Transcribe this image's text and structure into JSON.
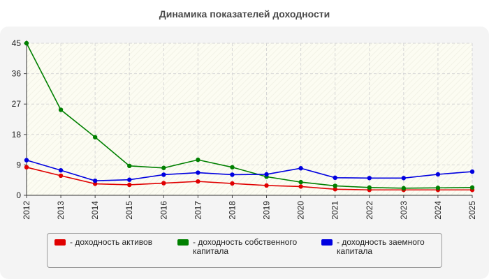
{
  "title": "Динамика показателей доходности",
  "chart_data": {
    "type": "line",
    "title": "Динамика показателей доходности",
    "xlabel": "",
    "ylabel": "",
    "ylim": [
      0,
      45
    ],
    "yticks": [
      0,
      9,
      18,
      27,
      36,
      45
    ],
    "grid": true,
    "legend_position": "bottom",
    "categories": [
      "2012",
      "2013",
      "2014",
      "2015",
      "2016",
      "2017",
      "2018",
      "2019",
      "2020",
      "2021",
      "2022",
      "2023",
      "2024",
      "2025"
    ],
    "series": [
      {
        "name": "- доходность активов",
        "color": "#e00000",
        "values": [
          8.3,
          5.8,
          3.4,
          3.1,
          3.6,
          4.1,
          3.5,
          2.9,
          2.6,
          1.8,
          1.6,
          1.6,
          1.6,
          1.6
        ]
      },
      {
        "name": "- доходность собственного капитала",
        "color": "#008000",
        "values": [
          45.0,
          25.3,
          17.2,
          8.7,
          8.1,
          10.5,
          8.3,
          5.5,
          3.9,
          2.8,
          2.3,
          2.1,
          2.2,
          2.3
        ]
      },
      {
        "name": "- доходность заемного капитала",
        "color": "#0000e0",
        "values": [
          10.4,
          7.4,
          4.3,
          4.6,
          6.1,
          6.7,
          6.1,
          6.2,
          8.0,
          5.2,
          5.1,
          5.1,
          6.2,
          7.0
        ]
      }
    ]
  }
}
